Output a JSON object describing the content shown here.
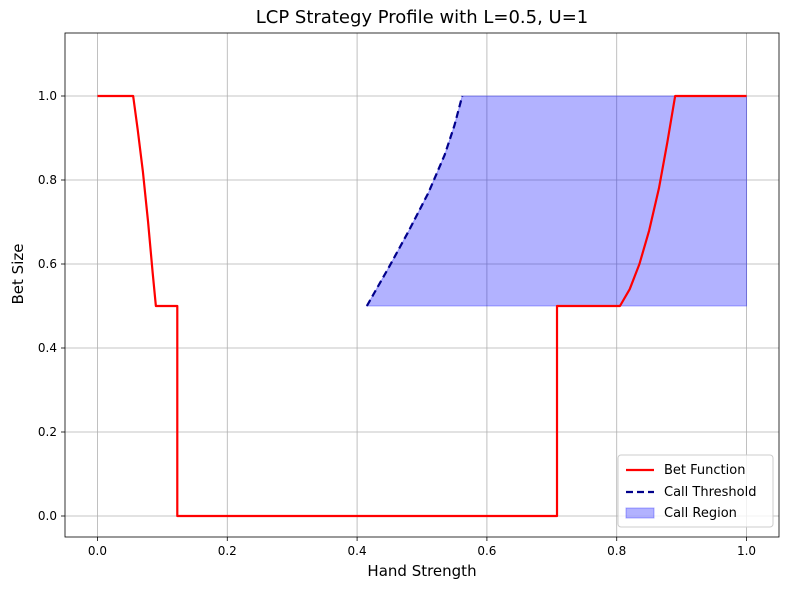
{
  "chart_data": {
    "type": "line",
    "title": "LCP Strategy Profile with L=0.5, U=1",
    "xlabel": "Hand Strength",
    "ylabel": "Bet Size",
    "xlim": [
      -0.05,
      1.05
    ],
    "ylim": [
      -0.05,
      1.15
    ],
    "xticks": [
      0.0,
      0.2,
      0.4,
      0.6,
      0.8,
      1.0
    ],
    "xtick_labels": [
      "0.0",
      "0.2",
      "0.4",
      "0.6",
      "0.8",
      "1.0"
    ],
    "yticks": [
      0.0,
      0.2,
      0.4,
      0.6,
      0.8,
      1.0
    ],
    "ytick_labels": [
      "0.0",
      "0.2",
      "0.4",
      "0.6",
      "0.8",
      "1.0"
    ],
    "grid": true,
    "legend_position": "bottom-right",
    "series": [
      {
        "name": "Bet Function",
        "style": "solid",
        "color": "#ff0000",
        "points": [
          [
            0.0,
            1.0
          ],
          [
            0.055,
            1.0
          ],
          [
            0.062,
            0.92
          ],
          [
            0.07,
            0.82
          ],
          [
            0.078,
            0.7
          ],
          [
            0.085,
            0.58
          ],
          [
            0.09,
            0.5
          ],
          [
            0.123,
            0.5
          ],
          [
            0.123,
            0.0
          ],
          [
            0.708,
            0.0
          ],
          [
            0.708,
            0.5
          ],
          [
            0.805,
            0.5
          ],
          [
            0.82,
            0.54
          ],
          [
            0.835,
            0.6
          ],
          [
            0.85,
            0.68
          ],
          [
            0.865,
            0.78
          ],
          [
            0.878,
            0.89
          ],
          [
            0.89,
            1.0
          ],
          [
            1.0,
            1.0
          ]
        ]
      },
      {
        "name": "Call Threshold",
        "style": "dashed",
        "color": "#00008b",
        "points": [
          [
            0.415,
            0.5
          ],
          [
            0.45,
            0.595
          ],
          [
            0.48,
            0.68
          ],
          [
            0.51,
            0.77
          ],
          [
            0.535,
            0.86
          ],
          [
            0.55,
            0.93
          ],
          [
            0.562,
            1.0
          ]
        ]
      }
    ],
    "region": {
      "name": "Call Region",
      "color": "#0000ff",
      "opacity": 0.3,
      "upper_x": [
        0.415,
        0.45,
        0.48,
        0.51,
        0.535,
        0.55,
        0.562,
        1.0
      ],
      "upper_y": [
        0.5,
        0.595,
        0.68,
        0.77,
        0.86,
        0.93,
        1.0,
        1.0
      ],
      "lower_y": 0.5,
      "lower_x_range": [
        0.415,
        1.0
      ]
    }
  }
}
